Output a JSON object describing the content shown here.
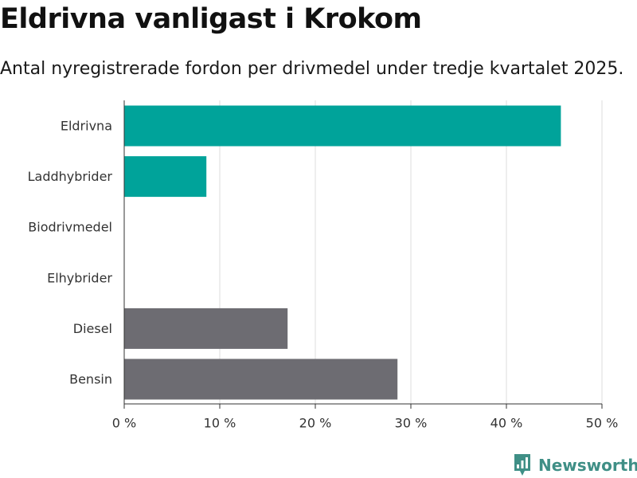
{
  "header": {
    "title": "Eldrivna vanligast i Krokom",
    "subtitle": "Antal nyregistrerade fordon per drivmedel under tredje kvartalet 2025."
  },
  "chart_data": {
    "type": "bar",
    "orientation": "horizontal",
    "categories": [
      "Eldrivna",
      "Laddhybrider",
      "Biodrivmedel",
      "Elhybrider",
      "Diesel",
      "Bensin"
    ],
    "values": [
      45.7,
      8.6,
      0,
      0,
      17.1,
      28.6
    ],
    "colors": [
      "#00a39a",
      "#00a39a",
      "#00a39a",
      "#00a39a",
      "#6d6c72",
      "#6d6c72"
    ],
    "xlim": [
      0,
      50
    ],
    "xticks": [
      0,
      10,
      20,
      30,
      40,
      50
    ],
    "xtick_labels": [
      "0 %",
      "10 %",
      "20 %",
      "30 %",
      "40 %",
      "50 %"
    ],
    "grid": true
  },
  "branding": {
    "name": "Newsworthy",
    "icon": "newsworthy-logo-icon",
    "color": "#3f8f86"
  }
}
